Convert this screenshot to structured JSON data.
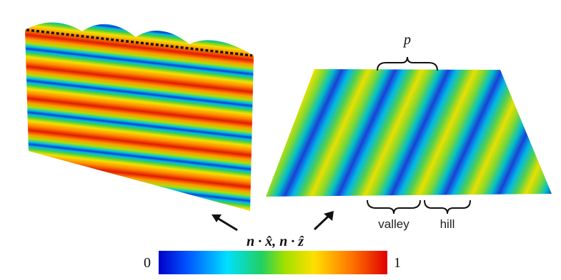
{
  "annotations": {
    "period": "p",
    "valley": "valley",
    "hill": "hill",
    "quantity": "n · x̂, n · ẑ"
  },
  "colorbar": {
    "ticks": [
      0,
      1
    ]
  }
}
